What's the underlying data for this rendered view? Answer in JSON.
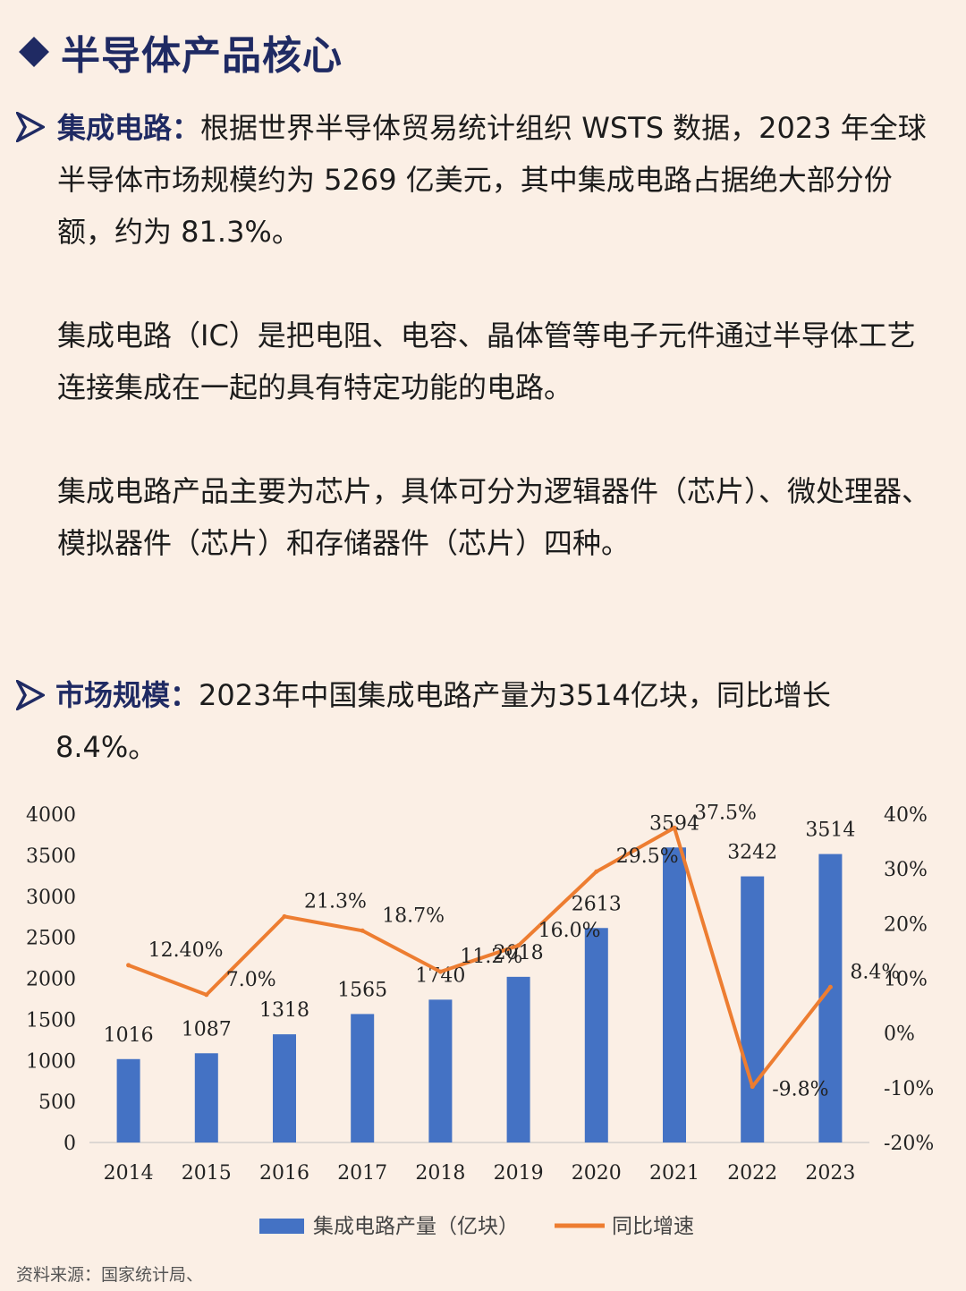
{
  "header": {
    "title": "半导体产品核心"
  },
  "section1": {
    "lead": "集成电路：",
    "text": "根据世界半导体贸易统计组织 WSTS 数据，2023 年全球半导体市场规模约为 5269 亿美元，其中集成电路占据绝大部分份额，约为 81.3%。",
    "para2": "集成电路（IC）是把电阻、电容、晶体管等电子元件通过半导体工艺连接集成在一起的具有特定功能的电路。",
    "para3": "集成电路产品主要为芯片，具体可分为逻辑器件（芯片）、微处理器、模拟器件（芯片）和存储器件（芯片）四种。"
  },
  "section2": {
    "lead": "市场规模：",
    "text": "2023年中国集成电路产量为3514亿块，同比增长8.4%。"
  },
  "chart_data": {
    "type": "bar",
    "categories": [
      "2014",
      "2015",
      "2016",
      "2017",
      "2018",
      "2019",
      "2020",
      "2021",
      "2022",
      "2023"
    ],
    "series": [
      {
        "name": "集成电路产量（亿块）",
        "type": "bar",
        "axis": "left",
        "values": [
          1016,
          1087,
          1318,
          1565,
          1740,
          2018,
          2613,
          3594,
          3242,
          3514
        ],
        "labels": [
          "1016",
          "1087",
          "1318",
          "1565",
          "1740",
          "2018",
          "2613",
          "3594",
          "3242",
          "3514"
        ]
      },
      {
        "name": "同比增速",
        "type": "line",
        "axis": "right",
        "values": [
          12.4,
          7.0,
          21.3,
          18.7,
          11.2,
          16.0,
          29.5,
          37.5,
          -9.8,
          8.4
        ],
        "labels": [
          "12.40%",
          "7.0%",
          "21.3%",
          "18.7%",
          "11.2%",
          "16.0%",
          "29.5%",
          "37.5%",
          "-9.8%",
          "8.4%"
        ]
      }
    ],
    "y_left": {
      "min": 0,
      "max": 4000,
      "ticks": [
        "0",
        "500",
        "1000",
        "1500",
        "2000",
        "2500",
        "3000",
        "3500",
        "4000"
      ]
    },
    "y_right": {
      "min": -20,
      "max": 40,
      "ticks": [
        "-20%",
        "-10%",
        "0%",
        "10%",
        "20%",
        "30%",
        "40%"
      ]
    },
    "colors": {
      "bar": "#4472c4",
      "line": "#ed7d31"
    },
    "legend_position": "bottom"
  },
  "footer": {
    "source": "资料来源：国家统计局、"
  }
}
